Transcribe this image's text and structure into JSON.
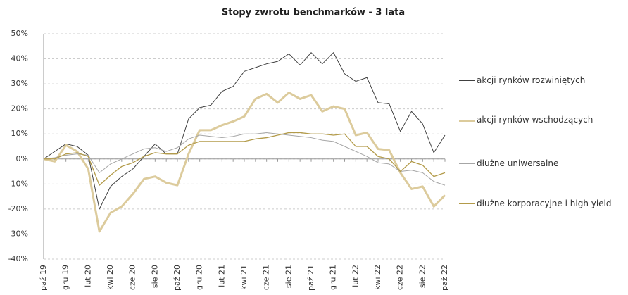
{
  "chart_data": {
    "type": "line",
    "title": "Stopy zwrotu benchmarków - 3 lata",
    "categories": [
      "paź 19",
      null,
      "gru 19",
      null,
      "lut 20",
      null,
      "kwi 20",
      null,
      "cze 20",
      null,
      "sie 20",
      null,
      "paź 20",
      null,
      "gru 20",
      null,
      "lut 21",
      null,
      "kwi 21",
      null,
      "cze 21",
      null,
      "sie 21",
      null,
      "paź 21",
      null,
      "gru 21",
      null,
      "lut 22",
      null,
      "kwi 22",
      null,
      "cze 22",
      null,
      "sie 22",
      null,
      "paź 22"
    ],
    "series": [
      {
        "name": "akcji rynków rozwiniętych",
        "color": "#404040",
        "width": 1,
        "values": [
          0,
          3,
          6,
          5,
          1.5,
          -20,
          -11,
          -7,
          -4,
          1,
          6,
          2,
          2,
          16,
          20.5,
          21.5,
          27,
          29,
          35,
          36.5,
          38,
          39,
          42,
          37.5,
          42.5,
          38,
          42.5,
          34,
          31,
          32.5,
          22.5,
          22,
          11,
          19,
          14,
          2.5,
          9.5
        ]
      },
      {
        "name": "akcji rynków wschodzących",
        "color": "#dccb9c",
        "width": 3,
        "values": [
          0,
          -1,
          5.5,
          3,
          -4,
          -29,
          -21.5,
          -19,
          -14,
          -8,
          -7,
          -9.5,
          -10.5,
          2,
          11.5,
          11.5,
          13.5,
          15,
          17,
          24,
          26,
          22.5,
          26.5,
          24,
          25.5,
          19,
          21,
          20,
          9.5,
          10.5,
          4,
          3.5,
          -5.5,
          -12,
          -11,
          -19,
          -14.5
        ]
      },
      {
        "name": "dłużne uniwersalne",
        "color": "#a6a6a6",
        "width": 1,
        "values": [
          0,
          0.5,
          1.5,
          2,
          1.5,
          -5.5,
          -2,
          0,
          2,
          4,
          4.5,
          3,
          4.5,
          8,
          9.5,
          9,
          8.5,
          9,
          10,
          10,
          10.5,
          10,
          9.5,
          9,
          8.5,
          7.5,
          7,
          5,
          3,
          1,
          -1.5,
          -2,
          -5,
          -4.5,
          -5.5,
          -9,
          -10.5
        ]
      },
      {
        "name": "dłużne korporacyjne i high yield",
        "color": "#b39b4a",
        "width": 1.3,
        "values": [
          0,
          0,
          2,
          2.5,
          1,
          -10.5,
          -6.5,
          -3,
          -1.5,
          1,
          2.5,
          2,
          2,
          5.5,
          7,
          7,
          7,
          7,
          7,
          8,
          8.5,
          9.5,
          10.5,
          10.5,
          10,
          10,
          9.5,
          10,
          5,
          5,
          1,
          0,
          -5,
          -1,
          -2.5,
          -7,
          -5.5
        ]
      }
    ],
    "ylim": [
      -40,
      50
    ],
    "yticks": [
      {
        "value": -40,
        "label": "-40%"
      },
      {
        "value": -30,
        "label": "-30%"
      },
      {
        "value": -20,
        "label": "-20%"
      },
      {
        "value": -10,
        "label": "-10%"
      },
      {
        "value": 0,
        "label": "0%"
      },
      {
        "value": 10,
        "label": "10%"
      },
      {
        "value": 20,
        "label": "20%"
      },
      {
        "value": 30,
        "label": "30%"
      },
      {
        "value": 40,
        "label": "40%"
      },
      {
        "value": 50,
        "label": "50%"
      }
    ],
    "grid": true,
    "legend": "right"
  }
}
